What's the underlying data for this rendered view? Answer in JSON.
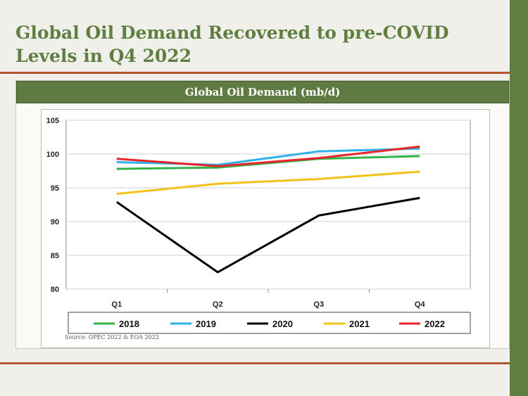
{
  "slide": {
    "title": "Global Oil Demand Recovered to pre-COVID Levels in Q4 2022",
    "source": "Source: OPEC 2022 & EOA 2022",
    "colors": {
      "accent_green": "#5f7f42",
      "rule_brown": "#b4532d"
    }
  },
  "chart_data": {
    "type": "line",
    "title": "Global Oil Demand (mb/d)",
    "xlabel": "",
    "ylabel": "",
    "categories": [
      "Q1",
      "Q2",
      "Q3",
      "Q4"
    ],
    "ylim": [
      80,
      105
    ],
    "yticks": [
      80,
      85,
      90,
      95,
      100,
      105
    ],
    "grid": true,
    "legend": "bottom",
    "series": [
      {
        "name": "2018",
        "color": "#33b34a",
        "values": [
          97.8,
          98.0,
          99.3,
          99.7
        ]
      },
      {
        "name": "2019",
        "color": "#2eb2e8",
        "values": [
          98.8,
          98.4,
          100.4,
          100.8
        ]
      },
      {
        "name": "2020",
        "color": "#000000",
        "values": [
          92.9,
          82.5,
          90.9,
          93.5
        ]
      },
      {
        "name": "2021",
        "color": "#f2c21c",
        "values": [
          94.1,
          95.6,
          96.3,
          97.4
        ]
      },
      {
        "name": "2022",
        "color": "#e5252a",
        "values": [
          99.3,
          98.2,
          99.4,
          101.1
        ]
      }
    ]
  }
}
